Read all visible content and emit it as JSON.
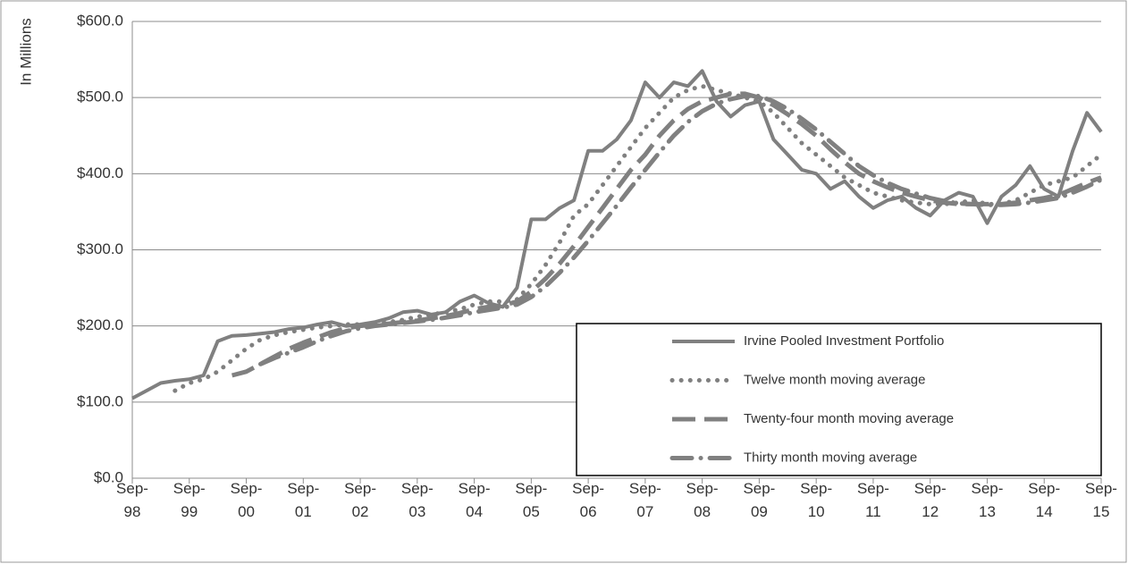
{
  "chart_data": {
    "type": "line",
    "ylabel": "In Millions",
    "categories": [
      "Sep-98",
      null,
      null,
      null,
      "Sep-99",
      null,
      null,
      null,
      "Sep-00",
      null,
      null,
      null,
      "Sep-01",
      null,
      null,
      null,
      "Sep-02",
      null,
      null,
      null,
      "Sep-03",
      null,
      null,
      null,
      "Sep-04",
      null,
      null,
      null,
      "Sep-05",
      null,
      null,
      null,
      "Sep-06",
      null,
      null,
      null,
      "Sep-07",
      null,
      null,
      null,
      "Sep-08",
      null,
      null,
      null,
      "Sep-09",
      null,
      null,
      null,
      "Sep-10",
      null,
      null,
      null,
      "Sep-11",
      null,
      null,
      null,
      "Sep-12",
      null,
      null,
      null,
      "Sep-13",
      null,
      null,
      null,
      "Sep-14",
      null,
      null,
      null,
      "Sep-15"
    ],
    "series": [
      {
        "name": "Irvine Pooled Investment Portfolio",
        "color": "#808080",
        "style": "solid",
        "values": [
          105,
          115,
          125,
          128,
          130,
          135,
          180,
          187,
          188,
          190,
          192,
          196,
          198,
          202,
          205,
          200,
          202,
          205,
          210,
          218,
          220,
          215,
          218,
          232,
          240,
          230,
          225,
          250,
          340,
          340,
          355,
          365,
          430,
          430,
          445,
          470,
          520,
          500,
          520,
          515,
          535,
          495,
          475,
          490,
          495,
          445,
          425,
          405,
          400,
          380,
          390,
          370,
          355,
          365,
          370,
          355,
          345,
          365,
          375,
          370,
          335,
          370,
          385,
          410,
          380,
          370,
          430,
          480,
          455
        ]
      },
      {
        "name": "Twelve month moving average",
        "color": "#808080",
        "style": "dotted",
        "values": [
          null,
          null,
          null,
          115,
          125,
          130,
          140,
          155,
          170,
          182,
          188,
          192,
          195,
          198,
          200,
          202,
          202,
          203,
          205,
          208,
          212,
          215,
          218,
          222,
          228,
          232,
          232,
          235,
          255,
          280,
          310,
          345,
          360,
          385,
          410,
          435,
          460,
          480,
          500,
          510,
          515,
          510,
          505,
          500,
          495,
          480,
          460,
          440,
          425,
          410,
          395,
          385,
          375,
          370,
          365,
          362,
          360,
          360,
          362,
          365,
          360,
          360,
          365,
          375,
          385,
          390,
          395,
          410,
          425
        ]
      },
      {
        "name": "Twenty-four month moving average",
        "color": "#808080",
        "style": "dashed",
        "values": [
          null,
          null,
          null,
          null,
          null,
          null,
          null,
          135,
          140,
          150,
          160,
          170,
          178,
          185,
          192,
          197,
          200,
          202,
          203,
          205,
          207,
          210,
          213,
          217,
          222,
          225,
          227,
          232,
          245,
          262,
          282,
          305,
          330,
          355,
          380,
          405,
          425,
          450,
          470,
          485,
          495,
          500,
          505,
          505,
          500,
          490,
          478,
          465,
          450,
          432,
          415,
          400,
          390,
          382,
          375,
          370,
          365,
          362,
          360,
          360,
          360,
          360,
          362,
          365,
          368,
          372,
          380,
          388,
          395
        ]
      },
      {
        "name": "Thirty month moving average",
        "color": "#808080",
        "style": "dashdot",
        "values": [
          null,
          null,
          null,
          null,
          null,
          null,
          null,
          null,
          null,
          150,
          158,
          165,
          172,
          180,
          187,
          193,
          197,
          200,
          202,
          204,
          206,
          208,
          211,
          214,
          218,
          221,
          224,
          228,
          238,
          252,
          270,
          290,
          312,
          335,
          358,
          382,
          405,
          428,
          450,
          468,
          482,
          492,
          498,
          502,
          502,
          495,
          485,
          472,
          458,
          442,
          426,
          410,
          398,
          388,
          380,
          374,
          368,
          364,
          361,
          360,
          359,
          359,
          360,
          362,
          365,
          368,
          375,
          383,
          392
        ]
      }
    ],
    "ylim": [
      0,
      600
    ],
    "yticks": [
      {
        "value": 0,
        "label": "$0.0"
      },
      {
        "value": 100,
        "label": "$100.0"
      },
      {
        "value": 200,
        "label": "$200.0"
      },
      {
        "value": 300,
        "label": "$300.0"
      },
      {
        "value": 400,
        "label": "$400.0"
      },
      {
        "value": 500,
        "label": "$500.0"
      },
      {
        "value": 600,
        "label": "$600.0"
      }
    ],
    "grid": true,
    "legend": "lower right"
  }
}
